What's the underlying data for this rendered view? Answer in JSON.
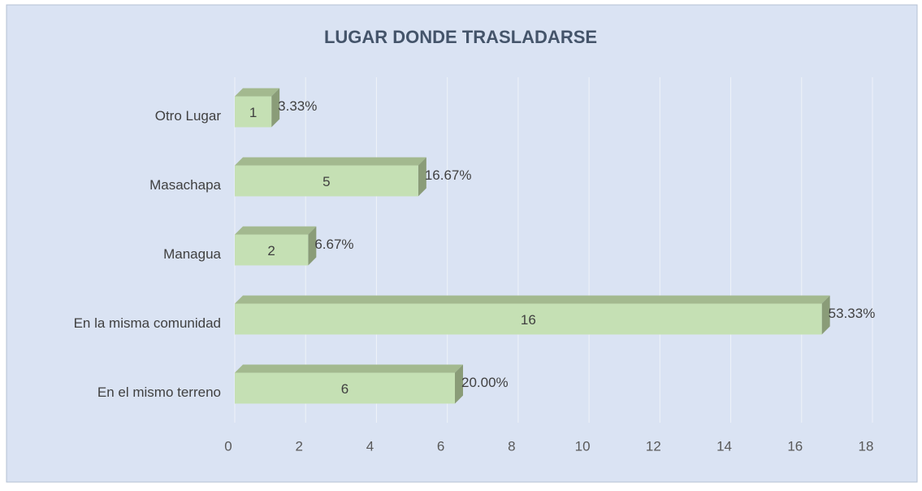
{
  "chart_data": {
    "type": "bar",
    "orientation": "horizontal",
    "style": "3d",
    "title": "LUGAR DONDE TRASLADARSE",
    "categories": [
      "Otro Lugar",
      "Masachapa",
      "Managua",
      "En la misma comunidad",
      "En el mismo terreno"
    ],
    "values": [
      1,
      5,
      2,
      16,
      6
    ],
    "percent_labels": [
      "3.33%",
      "16.67%",
      "6.67%",
      "53.33%",
      "20.00%"
    ],
    "color": "#c5e0b4",
    "xlim": [
      0,
      18
    ],
    "xticks": [
      0,
      2,
      4,
      6,
      8,
      10,
      12,
      14,
      16,
      18
    ],
    "grid": true
  }
}
